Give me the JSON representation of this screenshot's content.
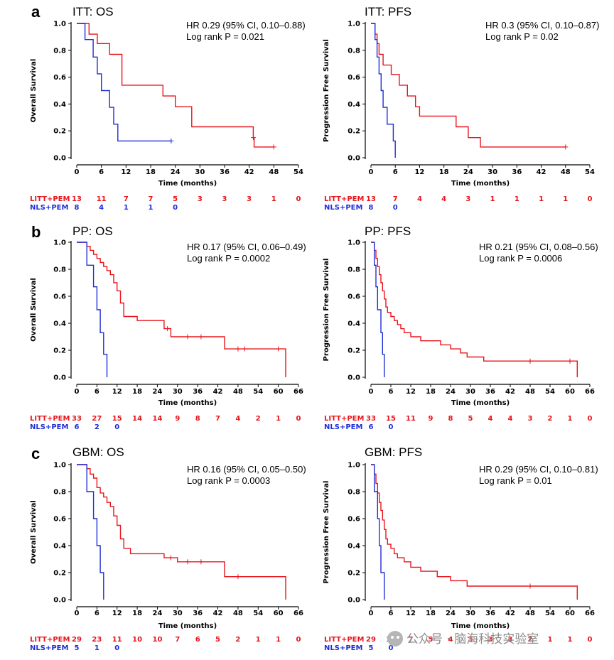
{
  "colors": {
    "treatment": "#e8141c",
    "control": "#1f2fd6",
    "axis": "#000000"
  },
  "watermark": "公众号 · 脑海科技实验室",
  "panel_letters": [
    "a",
    "b",
    "c"
  ],
  "chart_data": [
    {
      "type": "line",
      "subtype": "kaplan-meier",
      "title": "ITT: OS",
      "xlabel": "Time (months)",
      "ylabel": "Overall Survival",
      "hr_text": "HR 0.29 (95% CI, 0.10–0.88)",
      "p_text": "Log rank P = 0.021",
      "xlim": [
        0,
        54
      ],
      "xticks": [
        "0",
        "6",
        "12",
        "18",
        "24",
        "30",
        "36",
        "42",
        "48",
        "54"
      ],
      "ylim": [
        0,
        1
      ],
      "yticks": [
        "0.0",
        "0.2",
        "0.4",
        "0.6",
        "0.8",
        "1.0"
      ],
      "series": [
        {
          "name": "LITT+PEM",
          "steps": [
            [
              0,
              1
            ],
            [
              3,
              0.92
            ],
            [
              5,
              0.85
            ],
            [
              8,
              0.77
            ],
            [
              11,
              0.54
            ],
            [
              21,
              0.46
            ],
            [
              24,
              0.38
            ],
            [
              28,
              0.23
            ],
            [
              43,
              0.15
            ],
            [
              43.2,
              0.08
            ],
            [
              48,
              0.08
            ]
          ],
          "censors": [
            [
              43,
              0.15
            ],
            [
              48,
              0.08
            ]
          ]
        },
        {
          "name": "NLS+PEM",
          "steps": [
            [
              0,
              1
            ],
            [
              2,
              0.88
            ],
            [
              4,
              0.75
            ],
            [
              5,
              0.625
            ],
            [
              6,
              0.5
            ],
            [
              8,
              0.375
            ],
            [
              9,
              0.25
            ],
            [
              10,
              0.125
            ],
            [
              23,
              0.125
            ]
          ],
          "censors": [
            [
              23,
              0.125
            ]
          ]
        }
      ],
      "risk_rows": [
        {
          "name": "LITT+PEM",
          "values": [
            "13",
            "11",
            "7",
            "7",
            "5",
            "3",
            "3",
            "3",
            "1",
            "0"
          ]
        },
        {
          "name": "NLS+PEM",
          "values": [
            "8",
            "4",
            "1",
            "1",
            "0"
          ]
        }
      ]
    },
    {
      "type": "line",
      "subtype": "kaplan-meier",
      "title": "ITT: PFS",
      "xlabel": "Time (months)",
      "ylabel": "Progression Free Survival",
      "hr_text": "HR 0.3 (95% CI, 0.10–0.87)",
      "p_text": "Log rank P = 0.02",
      "xlim": [
        0,
        54
      ],
      "xticks": [
        "0",
        "6",
        "12",
        "18",
        "24",
        "30",
        "36",
        "42",
        "48",
        "54"
      ],
      "ylim": [
        0,
        1
      ],
      "yticks": [
        "0.0",
        "0.2",
        "0.4",
        "0.6",
        "0.8",
        "1.0"
      ],
      "series": [
        {
          "name": "LITT+PEM",
          "steps": [
            [
              0,
              1
            ],
            [
              1,
              0.92
            ],
            [
              1.5,
              0.85
            ],
            [
              2,
              0.77
            ],
            [
              3,
              0.69
            ],
            [
              5,
              0.62
            ],
            [
              7,
              0.54
            ],
            [
              9,
              0.46
            ],
            [
              11,
              0.38
            ],
            [
              12,
              0.31
            ],
            [
              21,
              0.23
            ],
            [
              24,
              0.15
            ],
            [
              27,
              0.08
            ],
            [
              48,
              0.08
            ]
          ],
          "censors": [
            [
              48,
              0.08
            ]
          ]
        },
        {
          "name": "NLS+PEM",
          "steps": [
            [
              0,
              1
            ],
            [
              1,
              0.88
            ],
            [
              1.5,
              0.75
            ],
            [
              2,
              0.625
            ],
            [
              2.5,
              0.5
            ],
            [
              3,
              0.375
            ],
            [
              4,
              0.25
            ],
            [
              5.5,
              0.125
            ],
            [
              6,
              0
            ]
          ],
          "censors": []
        }
      ],
      "risk_rows": [
        {
          "name": "LITT+PEM",
          "values": [
            "13",
            "7",
            "4",
            "4",
            "3",
            "1",
            "1",
            "1",
            "1",
            "0"
          ]
        },
        {
          "name": "NLS+PEM",
          "values": [
            "8",
            "0"
          ]
        }
      ]
    },
    {
      "type": "line",
      "subtype": "kaplan-meier",
      "title": "PP: OS",
      "xlabel": "Time (months)",
      "ylabel": "Overall Survival",
      "hr_text": "HR 0.17 (95% CI, 0.06–0.49)",
      "p_text": "Log rank P = 0.0002",
      "xlim": [
        0,
        66
      ],
      "xticks": [
        "0",
        "6",
        "12",
        "18",
        "24",
        "30",
        "36",
        "42",
        "48",
        "54",
        "60",
        "66"
      ],
      "ylim": [
        0,
        1
      ],
      "yticks": [
        "0.0",
        "0.2",
        "0.4",
        "0.6",
        "0.8",
        "1.0"
      ],
      "series": [
        {
          "name": "LITT+PEM",
          "steps": [
            [
              0,
              1
            ],
            [
              3,
              0.97
            ],
            [
              4,
              0.94
            ],
            [
              5,
              0.91
            ],
            [
              6,
              0.88
            ],
            [
              7,
              0.85
            ],
            [
              8,
              0.82
            ],
            [
              9,
              0.79
            ],
            [
              10,
              0.76
            ],
            [
              11,
              0.7
            ],
            [
              12,
              0.64
            ],
            [
              13,
              0.55
            ],
            [
              14,
              0.45
            ],
            [
              18,
              0.42
            ],
            [
              26,
              0.36
            ],
            [
              28,
              0.3
            ],
            [
              44,
              0.21
            ],
            [
              62,
              0.21
            ],
            [
              62.2,
              0
            ]
          ],
          "censors": [
            [
              27,
              0.36
            ],
            [
              33,
              0.3
            ],
            [
              37,
              0.3
            ],
            [
              48,
              0.21
            ],
            [
              50,
              0.21
            ],
            [
              60,
              0.21
            ]
          ]
        },
        {
          "name": "NLS+PEM",
          "steps": [
            [
              0,
              1
            ],
            [
              3,
              0.83
            ],
            [
              5,
              0.67
            ],
            [
              6,
              0.5
            ],
            [
              7,
              0.33
            ],
            [
              8,
              0.17
            ],
            [
              9,
              0
            ]
          ],
          "censors": []
        }
      ],
      "risk_rows": [
        {
          "name": "LITT+PEM",
          "values": [
            "33",
            "27",
            "15",
            "14",
            "14",
            "9",
            "8",
            "7",
            "4",
            "2",
            "1",
            "0"
          ]
        },
        {
          "name": "NLS+PEM",
          "values": [
            "6",
            "2",
            "0"
          ]
        }
      ]
    },
    {
      "type": "line",
      "subtype": "kaplan-meier",
      "title": "PP: PFS",
      "xlabel": "Time (months)",
      "ylabel": "Progression Free Survival",
      "hr_text": "HR 0.21 (95% CI, 0.08–0.56)",
      "p_text": "Log rank P = 0.0006",
      "xlim": [
        0,
        66
      ],
      "xticks": [
        "0",
        "6",
        "12",
        "18",
        "24",
        "30",
        "36",
        "42",
        "48",
        "54",
        "60",
        "66"
      ],
      "ylim": [
        0,
        1
      ],
      "yticks": [
        "0.0",
        "0.2",
        "0.4",
        "0.6",
        "0.8",
        "1.0"
      ],
      "series": [
        {
          "name": "LITT+PEM",
          "steps": [
            [
              0,
              1
            ],
            [
              1,
              0.94
            ],
            [
              1.5,
              0.88
            ],
            [
              2,
              0.82
            ],
            [
              2.5,
              0.76
            ],
            [
              3,
              0.7
            ],
            [
              3.5,
              0.64
            ],
            [
              4,
              0.58
            ],
            [
              4.5,
              0.52
            ],
            [
              5,
              0.48
            ],
            [
              6,
              0.45
            ],
            [
              7,
              0.42
            ],
            [
              8,
              0.39
            ],
            [
              9,
              0.36
            ],
            [
              10,
              0.33
            ],
            [
              12,
              0.3
            ],
            [
              15,
              0.27
            ],
            [
              21,
              0.24
            ],
            [
              24,
              0.21
            ],
            [
              27,
              0.18
            ],
            [
              29,
              0.15
            ],
            [
              34,
              0.12
            ],
            [
              48,
              0.12
            ],
            [
              62,
              0.12
            ],
            [
              62.2,
              0
            ]
          ],
          "censors": [
            [
              48,
              0.12
            ],
            [
              60,
              0.12
            ]
          ]
        },
        {
          "name": "NLS+PEM",
          "steps": [
            [
              0,
              1
            ],
            [
              1,
              0.83
            ],
            [
              1.5,
              0.67
            ],
            [
              2,
              0.5
            ],
            [
              3,
              0.33
            ],
            [
              3.5,
              0.17
            ],
            [
              4,
              0
            ]
          ],
          "censors": []
        }
      ],
      "risk_rows": [
        {
          "name": "LITT+PEM",
          "values": [
            "33",
            "15",
            "11",
            "9",
            "8",
            "5",
            "4",
            "4",
            "3",
            "2",
            "1",
            "0"
          ]
        },
        {
          "name": "NLS+PEM",
          "values": [
            "6",
            "0"
          ]
        }
      ]
    },
    {
      "type": "line",
      "subtype": "kaplan-meier",
      "title": "GBM: OS",
      "xlabel": "Time (months)",
      "ylabel": "Overall Survival",
      "hr_text": "HR 0.16 (95% CI, 0.05–0.50)",
      "p_text": "Log rank P = 0.0003",
      "xlim": [
        0,
        66
      ],
      "xticks": [
        "0",
        "6",
        "12",
        "18",
        "24",
        "30",
        "36",
        "42",
        "48",
        "54",
        "60",
        "66"
      ],
      "ylim": [
        0,
        1
      ],
      "yticks": [
        "0.0",
        "0.2",
        "0.4",
        "0.6",
        "0.8",
        "1.0"
      ],
      "series": [
        {
          "name": "LITT+PEM",
          "steps": [
            [
              0,
              1
            ],
            [
              3,
              0.97
            ],
            [
              4,
              0.93
            ],
            [
              5,
              0.9
            ],
            [
              6,
              0.83
            ],
            [
              7,
              0.79
            ],
            [
              8,
              0.76
            ],
            [
              9,
              0.72
            ],
            [
              10,
              0.69
            ],
            [
              11,
              0.62
            ],
            [
              12,
              0.55
            ],
            [
              13,
              0.45
            ],
            [
              14,
              0.38
            ],
            [
              16,
              0.34
            ],
            [
              26,
              0.31
            ],
            [
              30,
              0.28
            ],
            [
              44,
              0.17
            ],
            [
              62,
              0.17
            ],
            [
              62.2,
              0
            ]
          ],
          "censors": [
            [
              28,
              0.31
            ],
            [
              33,
              0.28
            ],
            [
              37,
              0.28
            ],
            [
              48,
              0.17
            ]
          ]
        },
        {
          "name": "NLS+PEM",
          "steps": [
            [
              0,
              1
            ],
            [
              3,
              0.8
            ],
            [
              5,
              0.6
            ],
            [
              6,
              0.4
            ],
            [
              7,
              0.2
            ],
            [
              8,
              0
            ]
          ],
          "censors": []
        }
      ],
      "risk_rows": [
        {
          "name": "LITT+PEM",
          "values": [
            "29",
            "23",
            "11",
            "10",
            "10",
            "7",
            "6",
            "5",
            "2",
            "1",
            "1",
            "0"
          ]
        },
        {
          "name": "NLS+PEM",
          "values": [
            "5",
            "1",
            "0"
          ]
        }
      ]
    },
    {
      "type": "line",
      "subtype": "kaplan-meier",
      "title": "GBM: PFS",
      "xlabel": "Time (months)",
      "ylabel": "Progression Free Survival",
      "hr_text": "HR 0.29 (95% CI, 0.10–0.81)",
      "p_text": "Log rank P = 0.01",
      "xlim": [
        0,
        66
      ],
      "xticks": [
        "0",
        "6",
        "12",
        "18",
        "24",
        "30",
        "36",
        "42",
        "48",
        "54",
        "60",
        "66"
      ],
      "ylim": [
        0,
        1
      ],
      "yticks": [
        "0.0",
        "0.2",
        "0.4",
        "0.6",
        "0.8",
        "1.0"
      ],
      "series": [
        {
          "name": "LITT+PEM",
          "steps": [
            [
              0,
              1
            ],
            [
              1,
              0.93
            ],
            [
              1.5,
              0.86
            ],
            [
              2,
              0.79
            ],
            [
              2.5,
              0.72
            ],
            [
              3,
              0.66
            ],
            [
              3.5,
              0.59
            ],
            [
              4,
              0.52
            ],
            [
              4.5,
              0.45
            ],
            [
              5,
              0.41
            ],
            [
              6,
              0.38
            ],
            [
              7,
              0.34
            ],
            [
              8,
              0.31
            ],
            [
              10,
              0.28
            ],
            [
              12,
              0.24
            ],
            [
              15,
              0.21
            ],
            [
              20,
              0.17
            ],
            [
              24,
              0.14
            ],
            [
              29,
              0.1
            ],
            [
              48,
              0.1
            ],
            [
              62,
              0.1
            ],
            [
              62.2,
              0
            ]
          ],
          "censors": [
            [
              48,
              0.1
            ]
          ]
        },
        {
          "name": "NLS+PEM",
          "steps": [
            [
              0,
              1
            ],
            [
              1,
              0.8
            ],
            [
              2,
              0.6
            ],
            [
              2.5,
              0.4
            ],
            [
              3,
              0.2
            ],
            [
              4,
              0
            ]
          ],
          "censors": []
        }
      ],
      "risk_rows": [
        {
          "name": "LITT+PEM",
          "values": [
            "29",
            "11",
            "7",
            "5",
            "4",
            "3",
            "3",
            "3",
            "2",
            "1",
            "1",
            "0"
          ]
        },
        {
          "name": "NLS+PEM",
          "values": [
            "5",
            "0"
          ]
        }
      ]
    }
  ]
}
